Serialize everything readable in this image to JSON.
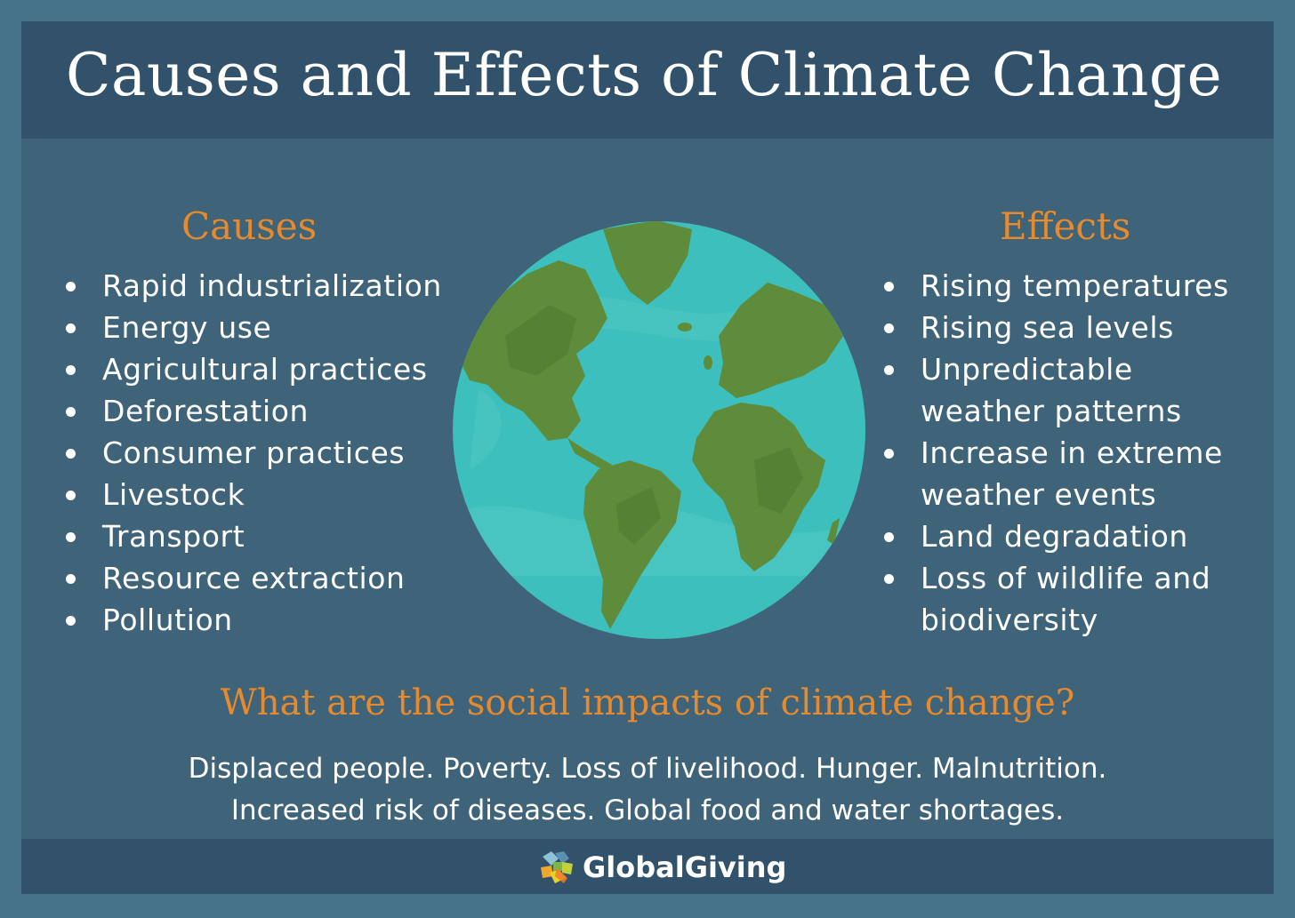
{
  "title": "Causes and Effects of Climate Change",
  "causes": {
    "heading": "Causes",
    "items": [
      "Rapid industrialization",
      "Energy use",
      "Agricultural practices",
      "Deforestation",
      "Consumer practices",
      "Livestock",
      "Transport",
      "Resource extraction",
      "Pollution"
    ]
  },
  "effects": {
    "heading": "Effects",
    "items": [
      "Rising temperatures",
      "Rising sea levels",
      "Unpredictable weather patterns",
      "Increase in extreme weather events",
      "Land degradation",
      "Loss of wildlife and biodiversity"
    ]
  },
  "social": {
    "question": "What are the social impacts of climate change?",
    "line1": "Displaced people. Poverty. Loss of livelihood. Hunger. Malnutrition.",
    "line2": "Increased risk of diseases. Global food and water shortages."
  },
  "footer": {
    "brand": "GlobalGiving",
    "logo_icon": "globalgiving-logo-icon"
  },
  "colors": {
    "background": "#46728a",
    "panel": "#3f6378",
    "bar": "#31526a",
    "accent": "#e58a2e",
    "text": "#ffffff",
    "ocean": "#3dbfbd",
    "land": "#5e8c3a"
  }
}
